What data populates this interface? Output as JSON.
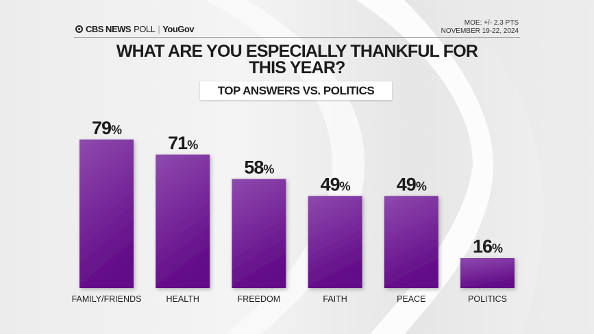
{
  "header": {
    "brand": "CBS NEWS",
    "brand_suffix": "POLL",
    "partner": "YouGov",
    "moe": "MOE: +/- 2.3 PTS",
    "dates": "NOVEMBER 19-22, 2024"
  },
  "chart_data": {
    "type": "bar",
    "title": "WHAT ARE YOU ESPECIALLY THANKFUL FOR THIS YEAR?",
    "title_lines": [
      "WHAT ARE YOU ESPECIALLY THANKFUL FOR",
      "THIS YEAR?"
    ],
    "subtitle": "TOP ANSWERS VS. POLITICS",
    "categories": [
      "FAMILY/FRIENDS",
      "HEALTH",
      "FREEDOM",
      "FAITH",
      "PEACE",
      "POLITICS"
    ],
    "values": [
      79,
      71,
      58,
      49,
      49,
      16
    ],
    "value_suffix": "%",
    "ylim": [
      0,
      100
    ],
    "grid": false,
    "bar_color_top": "#8e4aae",
    "bar_color_bottom": "#620b87"
  }
}
